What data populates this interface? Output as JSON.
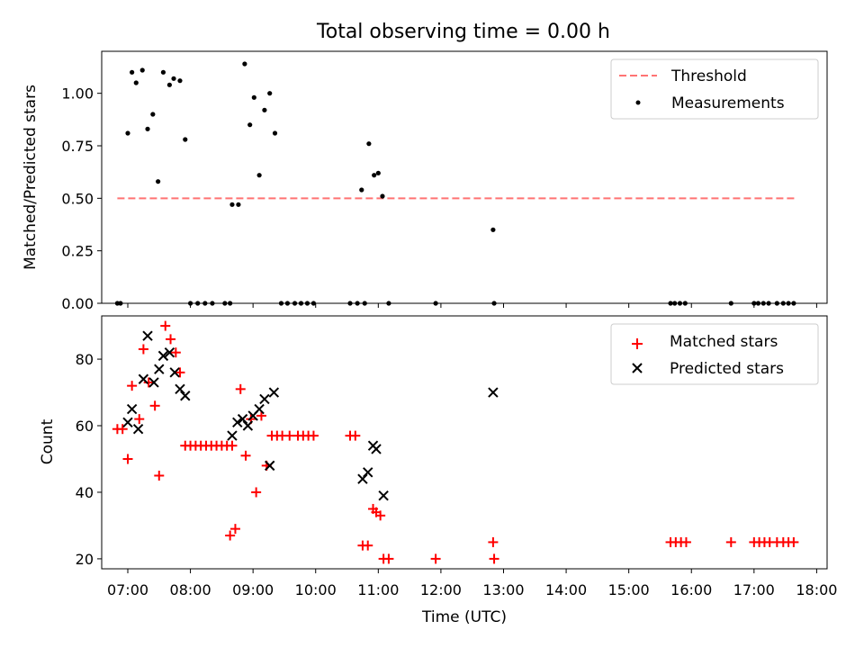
{
  "title": "Total observing time = 0.00 h",
  "colors": {
    "threshold": "#ff0000",
    "measurement": "#000000",
    "matched": "#ff0000",
    "predicted": "#000000"
  },
  "chart_data": [
    {
      "type": "scatter",
      "ylabel": "Matched/Predicted stars",
      "xlabel": "",
      "xlim": [
        "06:35",
        "18:10"
      ],
      "ylim": [
        0,
        1.2
      ],
      "yticks": [
        "0.00",
        "0.25",
        "0.50",
        "0.75",
        "1.00"
      ],
      "grid": false,
      "legend_position": "top-right",
      "legend": [
        "Threshold",
        "Measurements"
      ],
      "threshold": {
        "name": "Threshold",
        "value": 0.5,
        "x_range": [
          "06:50",
          "17:40"
        ],
        "style": "dashed"
      },
      "series": [
        {
          "name": "Measurements",
          "points": [
            [
              "06:50",
              0
            ],
            [
              "06:53",
              0
            ],
            [
              "07:00",
              0.81
            ],
            [
              "07:04",
              1.1
            ],
            [
              "07:08",
              1.05
            ],
            [
              "07:14",
              1.11
            ],
            [
              "07:19",
              0.83
            ],
            [
              "07:24",
              0.9
            ],
            [
              "07:29",
              0.58
            ],
            [
              "07:34",
              1.1
            ],
            [
              "07:40",
              1.04
            ],
            [
              "07:44",
              1.07
            ],
            [
              "07:50",
              1.06
            ],
            [
              "07:55",
              0.78
            ],
            [
              "08:00",
              0
            ],
            [
              "08:07",
              0
            ],
            [
              "08:14",
              0
            ],
            [
              "08:21",
              0
            ],
            [
              "08:33",
              0
            ],
            [
              "08:38",
              0
            ],
            [
              "08:40",
              0.47
            ],
            [
              "08:46",
              0.47
            ],
            [
              "08:52",
              1.14
            ],
            [
              "08:57",
              0.85
            ],
            [
              "09:01",
              0.98
            ],
            [
              "09:06",
              0.61
            ],
            [
              "09:11",
              0.92
            ],
            [
              "09:16",
              1.0
            ],
            [
              "09:21",
              0.81
            ],
            [
              "09:27",
              0
            ],
            [
              "09:33",
              0
            ],
            [
              "09:40",
              0
            ],
            [
              "09:46",
              0
            ],
            [
              "09:52",
              0
            ],
            [
              "09:58",
              0
            ],
            [
              "10:33",
              0
            ],
            [
              "10:40",
              0
            ],
            [
              "10:44",
              0.54
            ],
            [
              "10:47",
              0
            ],
            [
              "10:51",
              0.76
            ],
            [
              "10:56",
              0.61
            ],
            [
              "11:00",
              0.62
            ],
            [
              "11:04",
              0.51
            ],
            [
              "11:10",
              0
            ],
            [
              "11:55",
              0
            ],
            [
              "12:50",
              0.35
            ],
            [
              "12:51",
              0
            ],
            [
              "15:40",
              0
            ],
            [
              "15:44",
              0
            ],
            [
              "15:49",
              0
            ],
            [
              "15:54",
              0
            ],
            [
              "16:38",
              0
            ],
            [
              "17:00",
              0
            ],
            [
              "17:04",
              0
            ],
            [
              "17:09",
              0
            ],
            [
              "17:14",
              0
            ],
            [
              "17:22",
              0
            ],
            [
              "17:28",
              0
            ],
            [
              "17:33",
              0
            ],
            [
              "17:38",
              0
            ]
          ]
        }
      ]
    },
    {
      "type": "scatter",
      "ylabel": "Count",
      "xlabel": "Time (UTC)",
      "xlim": [
        "06:35",
        "18:10"
      ],
      "ylim": [
        17,
        93
      ],
      "yticks": [
        "20",
        "40",
        "60",
        "80"
      ],
      "xticks": [
        "07:00",
        "08:00",
        "09:00",
        "10:00",
        "11:00",
        "12:00",
        "13:00",
        "14:00",
        "15:00",
        "16:00",
        "17:00",
        "18:00"
      ],
      "grid": false,
      "legend_position": "top-right",
      "legend": [
        "Matched stars",
        "Predicted stars"
      ],
      "series": [
        {
          "name": "Matched stars",
          "marker": "+",
          "points": [
            [
              "06:50",
              59
            ],
            [
              "06:55",
              59
            ],
            [
              "07:00",
              50
            ],
            [
              "07:04",
              72
            ],
            [
              "07:11",
              62
            ],
            [
              "07:15",
              83
            ],
            [
              "07:20",
              73
            ],
            [
              "07:26",
              66
            ],
            [
              "07:30",
              45
            ],
            [
              "07:36",
              90
            ],
            [
              "07:41",
              86
            ],
            [
              "07:46",
              82
            ],
            [
              "07:50",
              76
            ],
            [
              "07:55",
              54
            ],
            [
              "08:00",
              54
            ],
            [
              "08:05",
              54
            ],
            [
              "08:10",
              54
            ],
            [
              "08:15",
              54
            ],
            [
              "08:20",
              54
            ],
            [
              "08:25",
              54
            ],
            [
              "08:30",
              54
            ],
            [
              "08:35",
              54
            ],
            [
              "08:40",
              54
            ],
            [
              "08:38",
              27
            ],
            [
              "08:43",
              29
            ],
            [
              "08:48",
              71
            ],
            [
              "08:53",
              51
            ],
            [
              "08:58",
              62
            ],
            [
              "09:03",
              40
            ],
            [
              "09:08",
              63
            ],
            [
              "09:13",
              48
            ],
            [
              "09:18",
              57
            ],
            [
              "09:23",
              57
            ],
            [
              "09:28",
              57
            ],
            [
              "09:35",
              57
            ],
            [
              "09:43",
              57
            ],
            [
              "09:48",
              57
            ],
            [
              "09:53",
              57
            ],
            [
              "09:58",
              57
            ],
            [
              "10:33",
              57
            ],
            [
              "10:38",
              57
            ],
            [
              "10:45",
              24
            ],
            [
              "10:50",
              24
            ],
            [
              "10:55",
              35
            ],
            [
              "10:58",
              34
            ],
            [
              "11:02",
              33
            ],
            [
              "11:05",
              20
            ],
            [
              "11:10",
              20
            ],
            [
              "11:55",
              20
            ],
            [
              "12:50",
              25
            ],
            [
              "12:51",
              20
            ],
            [
              "15:40",
              25
            ],
            [
              "15:45",
              25
            ],
            [
              "15:50",
              25
            ],
            [
              "15:55",
              25
            ],
            [
              "16:38",
              25
            ],
            [
              "17:00",
              25
            ],
            [
              "17:05",
              25
            ],
            [
              "17:10",
              25
            ],
            [
              "17:15",
              25
            ],
            [
              "17:22",
              25
            ],
            [
              "17:28",
              25
            ],
            [
              "17:33",
              25
            ],
            [
              "17:38",
              25
            ]
          ]
        },
        {
          "name": "Predicted stars",
          "marker": "x",
          "points": [
            [
              "07:00",
              61
            ],
            [
              "07:04",
              65
            ],
            [
              "07:10",
              59
            ],
            [
              "07:15",
              74
            ],
            [
              "07:19",
              87
            ],
            [
              "07:25",
              73
            ],
            [
              "07:30",
              77
            ],
            [
              "07:34",
              81
            ],
            [
              "07:40",
              82
            ],
            [
              "07:45",
              76
            ],
            [
              "07:50",
              71
            ],
            [
              "07:55",
              69
            ],
            [
              "08:40",
              57
            ],
            [
              "08:45",
              61
            ],
            [
              "08:50",
              62
            ],
            [
              "08:55",
              60
            ],
            [
              "09:00",
              63
            ],
            [
              "09:06",
              65
            ],
            [
              "09:11",
              68
            ],
            [
              "09:16",
              48
            ],
            [
              "09:20",
              70
            ],
            [
              "10:45",
              44
            ],
            [
              "10:50",
              46
            ],
            [
              "10:55",
              54
            ],
            [
              "10:58",
              53
            ],
            [
              "11:05",
              39
            ],
            [
              "12:50",
              70
            ]
          ]
        }
      ]
    }
  ]
}
